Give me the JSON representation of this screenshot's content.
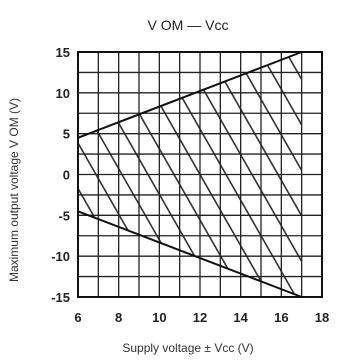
{
  "chart_data": {
    "type": "line",
    "title": "V OM — Vcc",
    "xlabel": "Supply voltage ± Vcc (V)",
    "ylabel": "Maximum output voltage V OM (V)",
    "xlim": [
      6,
      18
    ],
    "ylim": [
      -15,
      15
    ],
    "x_ticks": [
      "6",
      "8",
      "10",
      "12",
      "14",
      "16",
      "18"
    ],
    "y_ticks": [
      "15",
      "10",
      "5",
      "0",
      "-5",
      "-10",
      "-15"
    ],
    "grid": true,
    "series": [
      {
        "values": [
          [
            6,
            4.5
          ],
          [
            17,
            15
          ]
        ]
      },
      {
        "values": [
          [
            6,
            -4.5
          ],
          [
            17,
            -15
          ]
        ]
      }
    ]
  }
}
